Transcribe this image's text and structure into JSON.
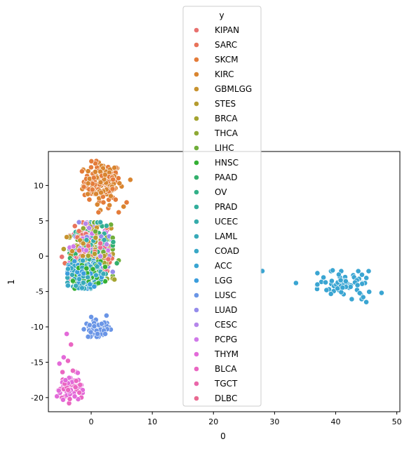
{
  "chart_data": {
    "type": "scatter",
    "title": "",
    "xlabel": "0",
    "ylabel": "1",
    "xlim": [
      -7.0,
      50.5
    ],
    "ylim": [
      -22.0,
      14.8
    ],
    "xticks": [
      0,
      10,
      20,
      30,
      40,
      50
    ],
    "yticks": [
      -20,
      -15,
      -10,
      -5,
      0,
      5,
      10
    ],
    "grid": false,
    "legend": {
      "title": "y",
      "placement": "top-center"
    },
    "series": [
      {
        "name": "KIPAN",
        "color": "#e8716f"
      },
      {
        "name": "SARC",
        "color": "#e8735a"
      },
      {
        "name": "SKCM",
        "color": "#e47c3a"
      },
      {
        "name": "KIRC",
        "color": "#d98530"
      },
      {
        "name": "GBMLGG",
        "color": "#c89330"
      },
      {
        "name": "STES",
        "color": "#b59c30"
      },
      {
        "name": "BRCA",
        "color": "#a4a430"
      },
      {
        "name": "THCA",
        "color": "#8fa935"
      },
      {
        "name": "LIHC",
        "color": "#6fae3a"
      },
      {
        "name": "HNSC",
        "color": "#34b034"
      },
      {
        "name": "PAAD",
        "color": "#33b06c"
      },
      {
        "name": "OV",
        "color": "#32b088"
      },
      {
        "name": "PRAD",
        "color": "#33ae9c"
      },
      {
        "name": "UCEC",
        "color": "#36acab"
      },
      {
        "name": "LAML",
        "color": "#38aab8"
      },
      {
        "name": "COAD",
        "color": "#39a8c6"
      },
      {
        "name": "ACC",
        "color": "#3aa5d2"
      },
      {
        "name": "LGG",
        "color": "#3c9edd"
      },
      {
        "name": "LUSC",
        "color": "#6a95e6"
      },
      {
        "name": "LUAD",
        "color": "#958ceb"
      },
      {
        "name": "CESC",
        "color": "#b586ea"
      },
      {
        "name": "PCPG",
        "color": "#d07ae9"
      },
      {
        "name": "THYM",
        "color": "#e36ad9"
      },
      {
        "name": "BLCA",
        "color": "#ea66c2"
      },
      {
        "name": "TGCT",
        "color": "#ea67aa"
      },
      {
        "name": "DLBC",
        "color": "#e96a91"
      }
    ],
    "clusters": [
      {
        "series": [
          "SKCM",
          "KIRC"
        ],
        "center": [
          1.8,
          10.6
        ],
        "spread": [
          1.5,
          1.3
        ],
        "n": 160,
        "points": [
          [
            -1.2,
            9.8
          ],
          [
            -0.5,
            10.3
          ],
          [
            0.2,
            9.4
          ],
          [
            0.8,
            8.8
          ],
          [
            -0.3,
            8.0
          ],
          [
            1.0,
            7.3
          ],
          [
            2.0,
            7.6
          ],
          [
            1.5,
            6.5
          ],
          [
            2.8,
            6.8
          ],
          [
            3.2,
            8.5
          ],
          [
            3.5,
            9.5
          ],
          [
            3.0,
            7.2
          ],
          [
            4.0,
            8.0
          ],
          [
            5.3,
            7.0
          ],
          [
            5.8,
            7.6
          ],
          [
            6.4,
            10.8
          ],
          [
            4.5,
            6.2
          ],
          [
            3.8,
            12.5
          ],
          [
            1.2,
            6.2
          ]
        ]
      },
      {
        "series": [
          "KIPAN",
          "SARC",
          "GBMLGG",
          "STES",
          "BRCA",
          "THCA",
          "LIHC",
          "PAAD",
          "OV",
          "PRAD",
          "UCEC",
          "LUAD",
          "CESC",
          "PCPG",
          "DLBC"
        ],
        "center": [
          0.0,
          0.8
        ],
        "spread": [
          1.6,
          1.8
        ],
        "n": 650,
        "points": [
          [
            -4.8,
            -0.1
          ],
          [
            -4.3,
            -1.0
          ],
          [
            -4.0,
            2.7
          ],
          [
            -4.5,
            1.0
          ],
          [
            3.8,
            -3.3
          ],
          [
            2.6,
            -3.2
          ],
          [
            4.5,
            -0.6
          ],
          [
            4.2,
            -1.0
          ],
          [
            3.6,
            2.0
          ],
          [
            2.5,
            4.3
          ],
          [
            1.5,
            4.8
          ],
          [
            -2.0,
            4.8
          ],
          [
            -0.9,
            4.6
          ]
        ]
      },
      {
        "series": [
          "HNSC",
          "LAML",
          "COAD",
          "LGG"
        ],
        "center": [
          -0.8,
          -2.6
        ],
        "spread": [
          1.4,
          0.9
        ],
        "n": 300,
        "points": [
          [
            -3.0,
            -3.5
          ],
          [
            -2.5,
            -4.2
          ],
          [
            -1.5,
            -4.5
          ],
          [
            0.5,
            -4.3
          ],
          [
            1.2,
            -3.8
          ],
          [
            2.0,
            -2.5
          ],
          [
            -3.8,
            -1.8
          ]
        ]
      },
      {
        "series": [
          "LUSC"
        ],
        "center": [
          1.0,
          -10.2
        ],
        "spread": [
          1.0,
          0.55
        ],
        "n": 70,
        "points": [
          [
            0.0,
            -8.6
          ],
          [
            2.5,
            -8.4
          ],
          [
            -0.5,
            -11.4
          ],
          [
            2.3,
            -11.0
          ]
        ]
      },
      {
        "series": [
          "THYM",
          "BLCA"
        ],
        "center": [
          -3.6,
          -18.6
        ],
        "spread": [
          1.0,
          1.0
        ],
        "n": 60,
        "points": [
          [
            -4.0,
            -11.0
          ],
          [
            -3.3,
            -12.5
          ],
          [
            -4.5,
            -14.3
          ],
          [
            -3.8,
            -14.8
          ],
          [
            -5.2,
            -15.2
          ],
          [
            -3.0,
            -16.2
          ],
          [
            -2.2,
            -16.5
          ],
          [
            -1.8,
            -18.2
          ],
          [
            -5.3,
            -19.0
          ],
          [
            -3.5,
            -20.2
          ],
          [
            -4.6,
            -20.3
          ]
        ]
      },
      {
        "series": [
          "ACC"
        ],
        "center": [
          41.8,
          -4.1
        ],
        "spread": [
          2.2,
          0.9
        ],
        "n": 60,
        "points": [
          [
            28.0,
            -2.1
          ],
          [
            33.5,
            -3.8
          ],
          [
            37.0,
            -2.4
          ],
          [
            37.0,
            -4.0
          ],
          [
            38.0,
            -3.0
          ],
          [
            39.5,
            -2.0
          ],
          [
            40.5,
            -2.6
          ],
          [
            45.0,
            -6.5
          ],
          [
            47.5,
            -5.2
          ],
          [
            44.5,
            -5.8
          ],
          [
            38.5,
            -4.8
          ]
        ]
      }
    ]
  }
}
